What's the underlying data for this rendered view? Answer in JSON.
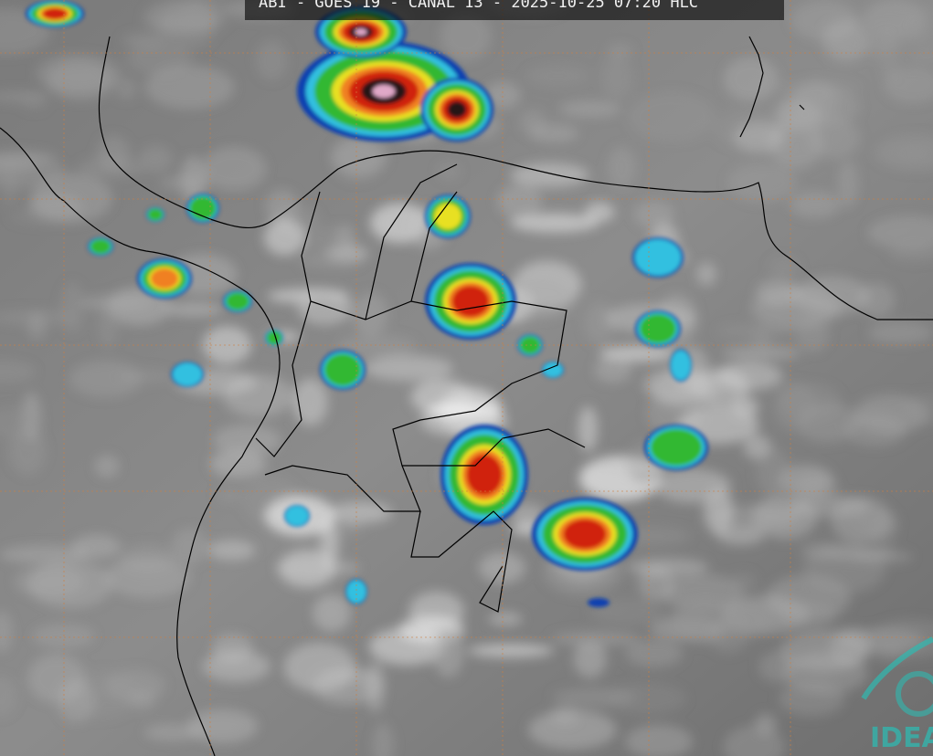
{
  "header": {
    "title": "ABI - GOES 19 - CANAL 13 - 2025-10-25 07:20 HLC"
  },
  "logo": {
    "text": "IDEA"
  }
}
